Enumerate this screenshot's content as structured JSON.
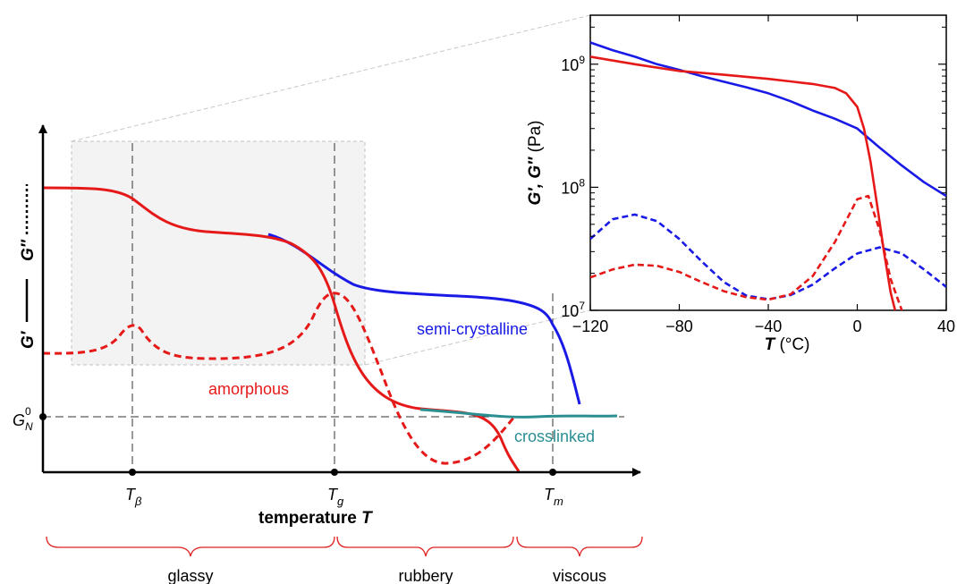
{
  "schematic": {
    "ylabel": {
      "gprime": "G′",
      "gdouble": "G″"
    },
    "xlabel": {
      "main": "temperature ",
      "var": "T"
    },
    "ticks": [
      {
        "base": "T",
        "sub": "β"
      },
      {
        "base": "T",
        "sub": "g"
      },
      {
        "base": "T",
        "sub": "m"
      }
    ],
    "plateau_label": {
      "base": "G",
      "sub": "N",
      "sup": "0"
    },
    "curve_labels": {
      "semi": "semi-crystalline",
      "amorphous": "amorphous",
      "crosslinked": "crosslinked"
    },
    "regions": [
      "glassy",
      "rubbery",
      "viscous"
    ],
    "colors": {
      "semi": "#1a1ae6",
      "amorphous": "#e61919",
      "crosslinked": "#2b8f92",
      "braces": "#e02020"
    }
  },
  "chart_data": [
    {
      "type": "line",
      "title": "",
      "xlabel": "temperature T",
      "ylabel": "G′ —— G″ ------",
      "x_ticks": [
        "Tβ",
        "Tg",
        "Tm"
      ],
      "annotations": [
        "G_N^0",
        "semi-crystalline",
        "amorphous",
        "crosslinked",
        "glassy",
        "rubbery",
        "viscous"
      ],
      "series": [
        {
          "name": "amorphous",
          "style": "solid"
        },
        {
          "name": "amorphous",
          "style": "dashed"
        },
        {
          "name": "semi-crystalline",
          "style": "solid"
        },
        {
          "name": "crosslinked",
          "style": "solid"
        }
      ]
    },
    {
      "type": "line",
      "title": "",
      "xlabel": "T (°C)",
      "ylabel": "G′, G″ (Pa)",
      "xlim": [
        -120,
        40
      ],
      "ylim": [
        10000000,
        2500000000
      ],
      "yscale": "log",
      "x_ticks": [
        -120,
        -80,
        -40,
        0,
        40
      ],
      "y_ticks": [
        "10^7",
        "10^8",
        "10^9"
      ],
      "series": [
        {
          "color": "blue",
          "style": "solid",
          "x": [
            -120,
            -110,
            -100,
            -90,
            -80,
            -70,
            -60,
            -50,
            -40,
            -30,
            -20,
            -10,
            0,
            10,
            20,
            30,
            40
          ],
          "y": [
            1500000000,
            1300000000,
            1150000000,
            1000000000,
            900000000,
            800000000,
            720000000,
            650000000,
            580000000,
            500000000,
            420000000,
            360000000,
            300000000,
            210000000,
            150000000,
            110000000,
            85000000
          ]
        },
        {
          "color": "red",
          "style": "solid",
          "x": [
            -120,
            -100,
            -80,
            -60,
            -40,
            -20,
            -10,
            -5,
            0,
            3,
            6,
            9,
            12,
            15,
            17
          ],
          "y": [
            1150000000,
            1000000000,
            880000000,
            820000000,
            760000000,
            690000000,
            640000000,
            580000000,
            450000000,
            300000000,
            160000000,
            70000000,
            30000000,
            14000000,
            10000000
          ]
        },
        {
          "color": "blue",
          "style": "dashed",
          "x": [
            -120,
            -110,
            -100,
            -90,
            -80,
            -70,
            -60,
            -50,
            -40,
            -30,
            -20,
            -10,
            0,
            10,
            20,
            30,
            40
          ],
          "y": [
            38000000,
            55000000,
            60000000,
            53000000,
            38000000,
            25000000,
            17000000,
            13200000,
            12300000,
            13300000,
            16200000,
            22000000,
            29000000,
            32500000,
            29000000,
            21500000,
            15500000
          ]
        },
        {
          "color": "red",
          "style": "dashed",
          "x": [
            -120,
            -110,
            -100,
            -90,
            -80,
            -70,
            -60,
            -50,
            -40,
            -30,
            -20,
            -10,
            0,
            5,
            10,
            15,
            20
          ],
          "y": [
            18500000,
            21500000,
            23500000,
            23000000,
            20500000,
            17000000,
            14300000,
            12800000,
            12200000,
            13500000,
            19000000,
            36000000,
            80000000,
            85000000,
            45000000,
            18000000,
            10000000
          ]
        }
      ]
    }
  ]
}
